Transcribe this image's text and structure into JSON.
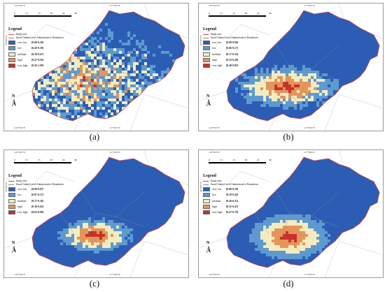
{
  "panels": [
    {
      "id": "a",
      "caption": "(a)",
      "legend": {
        "title": "Legend",
        "study_area": "Study area",
        "boundaries": "Jinan County-Level Administrative Boundaries",
        "classes": [
          {
            "label": "very low",
            "range": "[0.00-0.26]",
            "color": "#2b5db5"
          },
          {
            "label": "low",
            "range": "[0.26-0.39]",
            "color": "#5e9ad0"
          },
          {
            "label": "medium",
            "range": "[0.39-0.47]",
            "color": "#f3ecc0"
          },
          {
            "label": "high",
            "range": "[0.47-0.56]",
            "color": "#e4955a"
          },
          {
            "label": "very high",
            "range": "[0.56-1.00]",
            "color": "#c8302a"
          }
        ]
      },
      "scale_ticks": [
        "0",
        "7.5",
        "15",
        "30",
        "45",
        "60"
      ],
      "coords": {
        "top_left": "116°30'0\"E",
        "top_right": "117°30'0\"E",
        "left": "36°30'0\"N",
        "right": "36°30'0\"N"
      }
    },
    {
      "id": "b",
      "caption": "(b)",
      "legend": {
        "title": "Legend",
        "study_area": "Study area",
        "boundaries": "Jinan County-Level Administrative Boundaries",
        "classes": [
          {
            "label": "very low",
            "range": "[0.00-0.06]",
            "color": "#2b5db5"
          },
          {
            "label": "low",
            "range": "[0.06-0.17]",
            "color": "#5e9ad0"
          },
          {
            "label": "medium",
            "range": "[0.17-0.32]",
            "color": "#f3ecc0"
          },
          {
            "label": "high",
            "range": "[0.32-0.49]",
            "color": "#e4955a"
          },
          {
            "label": "very high",
            "range": "[0.49-0.85]",
            "color": "#c8302a"
          }
        ]
      },
      "scale_ticks": [
        "0",
        "7.5",
        "15",
        "30",
        "45",
        "60"
      ],
      "coords": {
        "top_left": "116°30'0\"E",
        "top_right": "117°30'0\"E",
        "left": "36°30'0\"N",
        "right": "36°30'0\"N"
      }
    },
    {
      "id": "c",
      "caption": "(c)",
      "legend": {
        "title": "Legend",
        "study_area": "Study area",
        "boundaries": "Jinan County-Level Administrative Boundaries",
        "classes": [
          {
            "label": "very low",
            "range": "[0.00-0.07]",
            "color": "#2b5db5"
          },
          {
            "label": "low",
            "range": "[0.07-0.17]",
            "color": "#5e9ad0"
          },
          {
            "label": "medium",
            "range": "[0.17-0.36]",
            "color": "#f3ecc0"
          },
          {
            "label": "high",
            "range": "[0.36-0.62]",
            "color": "#e4955a"
          },
          {
            "label": "very high",
            "range": "[0.62-0.98]",
            "color": "#c8302a"
          }
        ]
      },
      "scale_ticks": [
        "0",
        "7.5",
        "15",
        "30",
        "45",
        "60"
      ],
      "coords": {
        "top_left": "116°30'0\"E",
        "top_right": "117°30'0\"E",
        "left": "36°30'0\"N",
        "right": "36°30'0\"N"
      }
    },
    {
      "id": "d",
      "caption": "(d)",
      "legend": {
        "title": "Legend",
        "study_area": "Study area",
        "boundaries": "Jinan County-Level Administrative Boundaries",
        "classes": [
          {
            "label": "very low",
            "range": "[0.00-0.19]",
            "color": "#2b5db5"
          },
          {
            "label": "low",
            "range": "[0.19-0.26]",
            "color": "#5e9ad0"
          },
          {
            "label": "medium",
            "range": "[0.26-0.31]",
            "color": "#f3ecc0"
          },
          {
            "label": "high",
            "range": "[0.31-0.47]",
            "color": "#e4955a"
          },
          {
            "label": "very high",
            "range": "[0.47-0.79]",
            "color": "#c8302a"
          }
        ]
      },
      "scale_ticks": [
        "0",
        "7.5",
        "15",
        "30",
        "45",
        "60"
      ],
      "coords": {
        "top_left": "116°30'0\"E",
        "top_right": "117°30'0\"E",
        "left": "36°30'0\"N",
        "right": "36°30'0\"N"
      }
    }
  ],
  "north_letter": "N",
  "colors": {
    "study_area_line": "#d8484b",
    "boundary_line": "#888888"
  }
}
